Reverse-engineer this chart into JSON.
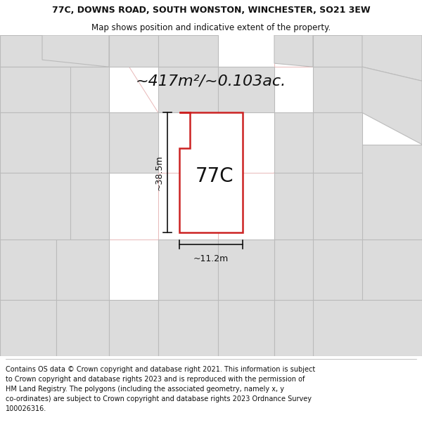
{
  "title_line1": "77C, DOWNS ROAD, SOUTH WONSTON, WINCHESTER, SO21 3EW",
  "title_line2": "Map shows position and indicative extent of the property.",
  "area_text": "~417m²/~0.103ac.",
  "label_77c": "77C",
  "dim_width": "~11.2m",
  "dim_height": "~38.5m",
  "footer_lines": [
    "Contains OS data © Crown copyright and database right 2021. This information is subject",
    "to Crown copyright and database rights 2023 and is reproduced with the permission of",
    "HM Land Registry. The polygons (including the associated geometry, namely x, y",
    "co-ordinates) are subject to Crown copyright and database rights 2023 Ordnance Survey",
    "100026316."
  ],
  "bg_color": "#ffffff",
  "map_bg": "#f7f3f3",
  "parcel_fill": "#ffffff",
  "parcel_edge": "#cc2222",
  "neighbor_fill": "#dcdcdc",
  "neighbor_edge": "#bbbbbb",
  "gridline_color": "#e8b8b8",
  "dim_line_color": "#111111",
  "text_color": "#111111",
  "title_fontsize": 9.0,
  "subtitle_fontsize": 8.5,
  "area_fontsize": 16,
  "label_fontsize": 20,
  "dim_fontsize": 9,
  "footer_fontsize": 7.0
}
